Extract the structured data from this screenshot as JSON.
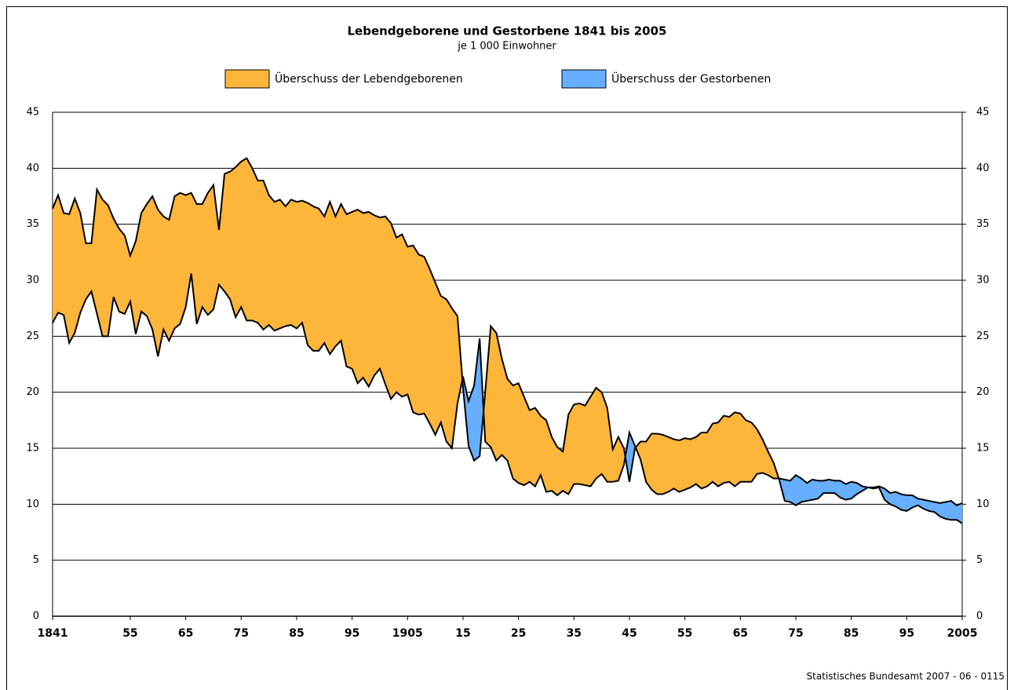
{
  "chart_data": {
    "type": "difference-area",
    "title": "Lebendgeborene und Gestorbene 1841 bis 2005",
    "subtitle": "je 1 000 Einwohner",
    "source": "Statistisches Bundesamt 2007 - 06 - 0115",
    "legend": [
      {
        "label": "Überschuss der Lebendgeborenen",
        "color": "#fdb53a"
      },
      {
        "label": "Überschuss der Gestorbenen",
        "color": "#66afff"
      }
    ],
    "line_color": "#000000",
    "grid": true,
    "x": [
      1841,
      1842,
      1843,
      1844,
      1845,
      1846,
      1847,
      1848,
      1849,
      1850,
      1851,
      1852,
      1853,
      1854,
      1855,
      1856,
      1857,
      1858,
      1859,
      1860,
      1861,
      1862,
      1863,
      1864,
      1865,
      1866,
      1867,
      1868,
      1869,
      1870,
      1871,
      1872,
      1873,
      1874,
      1875,
      1876,
      1877,
      1878,
      1879,
      1880,
      1881,
      1882,
      1883,
      1884,
      1885,
      1886,
      1887,
      1888,
      1889,
      1890,
      1891,
      1892,
      1893,
      1894,
      1895,
      1896,
      1897,
      1898,
      1899,
      1900,
      1901,
      1902,
      1903,
      1904,
      1905,
      1906,
      1907,
      1908,
      1909,
      1910,
      1911,
      1912,
      1913,
      1914,
      1915,
      1916,
      1917,
      1918,
      1919,
      1920,
      1921,
      1922,
      1923,
      1924,
      1925,
      1926,
      1927,
      1928,
      1929,
      1930,
      1931,
      1932,
      1933,
      1934,
      1935,
      1936,
      1937,
      1938,
      1939,
      1940,
      1941,
      1942,
      1943,
      1944,
      1945,
      1946,
      1947,
      1948,
      1949,
      1950,
      1951,
      1952,
      1953,
      1954,
      1955,
      1956,
      1957,
      1958,
      1959,
      1960,
      1961,
      1962,
      1963,
      1964,
      1965,
      1966,
      1967,
      1968,
      1969,
      1970,
      1971,
      1972,
      1973,
      1974,
      1975,
      1976,
      1977,
      1978,
      1979,
      1980,
      1981,
      1982,
      1983,
      1984,
      1985,
      1986,
      1987,
      1988,
      1989,
      1990,
      1991,
      1992,
      1993,
      1994,
      1995,
      1996,
      1997,
      1998,
      1999,
      2000,
      2001,
      2002,
      2003,
      2004,
      2005
    ],
    "series": [
      {
        "values": [
          36.4,
          37.6,
          36.0,
          35.9,
          37.3,
          36.0,
          33.3,
          33.3,
          38.1,
          37.2,
          36.7,
          35.5,
          34.6,
          34.0,
          32.2,
          33.5,
          36.0,
          36.8,
          37.5,
          36.3,
          35.7,
          35.4,
          37.5,
          37.8,
          37.6,
          37.8,
          36.8,
          36.8,
          37.8,
          38.5,
          34.5,
          39.5,
          39.7,
          40.1,
          40.6,
          40.9,
          40.0,
          38.9,
          38.9,
          37.6,
          37.0,
          37.2,
          36.6,
          37.2,
          37.0,
          37.1,
          36.9,
          36.6,
          36.4,
          35.7,
          37.0,
          35.7,
          36.8,
          35.9,
          36.1,
          36.3,
          36.0,
          36.1,
          35.8,
          35.6,
          35.7,
          35.1,
          33.8,
          34.1,
          33.0,
          33.1,
          32.3,
          32.1,
          31.0,
          29.8,
          28.6,
          28.3,
          27.5,
          26.8,
          20.4,
          15.2,
          13.9,
          14.3,
          20.0,
          25.9,
          25.3,
          23.0,
          21.2,
          20.6,
          20.8,
          19.6,
          18.4,
          18.6,
          17.9,
          17.5,
          16.0,
          15.1,
          14.7,
          18.0,
          18.9,
          19.0,
          18.8,
          19.6,
          20.4,
          20.0,
          18.6,
          14.9,
          16.0,
          15.0,
          12.0,
          15.0,
          15.6,
          15.6,
          16.3,
          16.3,
          16.2,
          16.0,
          15.8,
          15.7,
          15.9,
          15.8,
          16.0,
          16.4,
          16.4,
          17.2,
          17.3,
          17.9,
          17.8,
          18.2,
          18.1,
          17.5,
          17.3,
          16.7,
          15.8,
          14.7,
          13.7,
          12.2,
          10.3,
          10.2,
          9.9,
          10.2,
          10.3,
          10.4,
          10.5,
          11.0,
          11.0,
          11.0,
          10.6,
          10.4,
          10.5,
          10.9,
          11.2,
          11.5,
          11.4,
          11.5,
          10.4,
          10.0,
          9.8,
          9.5,
          9.4,
          9.7,
          9.9,
          9.6,
          9.4,
          9.3,
          8.9,
          8.7,
          8.6,
          8.6,
          8.3
        ]
      },
      {
        "values": [
          26.2,
          27.1,
          26.9,
          24.4,
          25.3,
          27.1,
          28.3,
          29.0,
          27.0,
          25.0,
          25.0,
          28.5,
          27.2,
          27.0,
          28.1,
          25.2,
          27.2,
          26.8,
          25.6,
          23.2,
          25.6,
          24.6,
          25.7,
          26.1,
          27.6,
          30.6,
          26.1,
          27.6,
          26.9,
          27.4,
          29.6,
          29.0,
          28.3,
          26.7,
          27.6,
          26.4,
          26.4,
          26.2,
          25.6,
          26.0,
          25.5,
          25.7,
          25.9,
          26.0,
          25.7,
          26.2,
          24.2,
          23.7,
          23.7,
          24.4,
          23.4,
          24.1,
          24.6,
          22.3,
          22.1,
          20.8,
          21.3,
          20.5,
          21.5,
          22.1,
          20.7,
          19.4,
          20.0,
          19.6,
          19.8,
          18.2,
          18.0,
          18.1,
          17.2,
          16.2,
          17.3,
          15.6,
          15.0,
          19.0,
          21.4,
          19.2,
          20.6,
          24.8,
          15.6,
          15.1,
          13.9,
          14.4,
          13.9,
          12.3,
          11.9,
          11.7,
          12.0,
          11.6,
          12.6,
          11.1,
          11.2,
          10.8,
          11.2,
          10.9,
          11.8,
          11.8,
          11.7,
          11.6,
          12.3,
          12.7,
          12.0,
          12.0,
          12.1,
          13.5,
          16.4,
          15.2,
          14.0,
          12.0,
          11.3,
          10.9,
          10.9,
          11.1,
          11.4,
          11.1,
          11.3,
          11.5,
          11.8,
          11.4,
          11.6,
          12.0,
          11.6,
          11.9,
          12.0,
          11.6,
          12.0,
          12.0,
          12.0,
          12.7,
          12.8,
          12.6,
          12.3,
          12.3,
          12.2,
          12.1,
          12.6,
          12.3,
          11.9,
          12.2,
          12.1,
          12.1,
          12.2,
          12.1,
          12.1,
          11.8,
          12.0,
          11.9,
          11.6,
          11.5,
          11.5,
          11.6,
          11.4,
          11.0,
          11.1,
          10.9,
          10.8,
          10.8,
          10.5,
          10.4,
          10.3,
          10.2,
          10.1,
          10.2,
          10.3,
          9.9,
          10.1
        ]
      }
    ],
    "xlim": [
      1841,
      2005
    ],
    "xticks": [
      1841,
      {
        "value": 1855,
        "label": "55"
      },
      {
        "value": 1865,
        "label": "65"
      },
      {
        "value": 1875,
        "label": "75"
      },
      {
        "value": 1885,
        "label": "85"
      },
      {
        "value": 1895,
        "label": "95"
      },
      1905,
      {
        "value": 1915,
        "label": "15"
      },
      {
        "value": 1925,
        "label": "25"
      },
      {
        "value": 1935,
        "label": "35"
      },
      {
        "value": 1945,
        "label": "45"
      },
      {
        "value": 1955,
        "label": "55"
      },
      {
        "value": 1965,
        "label": "65"
      },
      {
        "value": 1975,
        "label": "75"
      },
      {
        "value": 1985,
        "label": "85"
      },
      {
        "value": 1995,
        "label": "95"
      },
      2005
    ],
    "ylim": [
      0,
      45
    ],
    "yticks": [
      0,
      5,
      10,
      15,
      20,
      25,
      30,
      35,
      40,
      45
    ],
    "y2lim": [
      0,
      45
    ],
    "y2ticks": [
      0,
      5,
      10,
      15,
      20,
      25,
      30,
      35,
      40,
      45
    ]
  }
}
